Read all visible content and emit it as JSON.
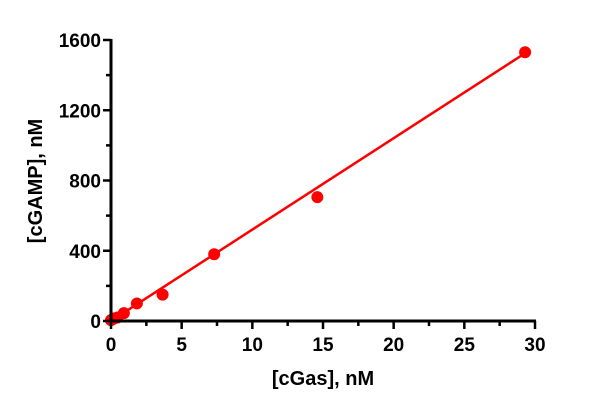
{
  "chart_data": {
    "type": "scatter",
    "title": "",
    "xlabel": "[cGas], nM",
    "ylabel": "[cGAMP], nM",
    "xlim": [
      0,
      30
    ],
    "ylim": [
      0,
      1600
    ],
    "x_ticks": [
      0,
      5,
      10,
      15,
      20,
      25,
      30
    ],
    "y_ticks": [
      0,
      400,
      800,
      1200,
      1600
    ],
    "grid": false,
    "legend": null,
    "series": [
      {
        "name": "data",
        "marker": "circle",
        "color": "#ff0000",
        "x": [
          0,
          0.11,
          0.23,
          0.46,
          0.91,
          1.83,
          3.65,
          7.3,
          14.6,
          29.3
        ],
        "y": [
          5,
          10,
          15,
          20,
          45,
          100,
          150,
          380,
          705,
          1530
        ]
      },
      {
        "name": "linear fit",
        "type": "line",
        "color": "#ff0000",
        "x": [
          0,
          29.3
        ],
        "y": [
          0,
          1525
        ]
      }
    ]
  },
  "colors": {
    "series": "#ff0000",
    "axis": "#000000"
  }
}
